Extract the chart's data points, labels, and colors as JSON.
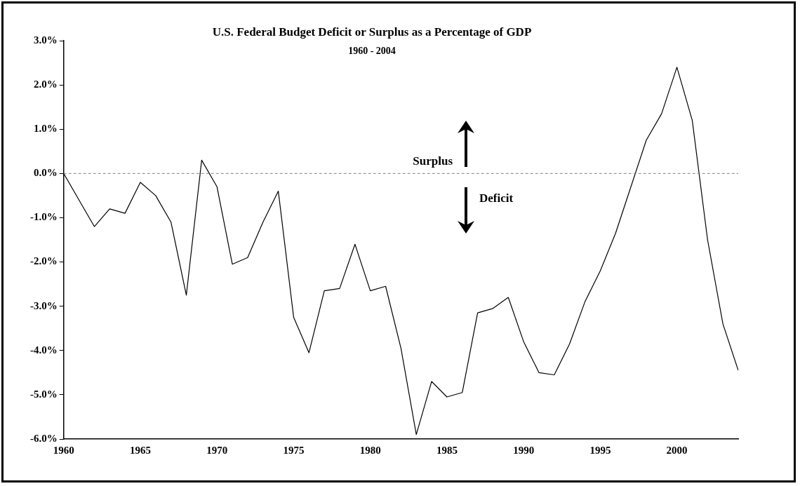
{
  "chart_data": {
    "type": "line",
    "title": "U.S. Federal Budget Deficit or Surplus as a Percentage of GDP",
    "subtitle": "1960 - 2004",
    "x": [
      1960,
      1961,
      1962,
      1963,
      1964,
      1965,
      1966,
      1967,
      1968,
      1969,
      1970,
      1971,
      1972,
      1973,
      1974,
      1975,
      1976,
      1977,
      1978,
      1979,
      1980,
      1981,
      1982,
      1983,
      1984,
      1985,
      1986,
      1987,
      1988,
      1989,
      1990,
      1991,
      1992,
      1993,
      1994,
      1995,
      1996,
      1997,
      1998,
      1999,
      2000,
      2001,
      2002,
      2003,
      2004
    ],
    "series": [
      {
        "color": "#000000",
        "values": [
          0.0,
          -0.6,
          -1.2,
          -0.8,
          -0.9,
          -0.2,
          -0.5,
          -1.1,
          -2.75,
          0.3,
          -0.3,
          -2.05,
          -1.9,
          -1.1,
          -0.4,
          -3.25,
          -4.05,
          -2.65,
          -2.6,
          -1.6,
          -2.65,
          -2.55,
          -3.95,
          -5.9,
          -4.7,
          -5.05,
          -4.95,
          -3.15,
          -3.05,
          -2.8,
          -3.8,
          -4.5,
          -4.55,
          -3.85,
          -2.9,
          -2.2,
          -1.35,
          -0.3,
          0.75,
          1.35,
          2.4,
          1.2,
          -1.5,
          -3.4,
          -4.45
        ]
      }
    ],
    "xlim": [
      1960,
      2004
    ],
    "xticks": [
      1960,
      1965,
      1970,
      1975,
      1980,
      1985,
      1990,
      1995,
      2000
    ],
    "ylim": [
      -6,
      3
    ],
    "yticks": [
      {
        "value": -6,
        "label": "-6.0%"
      },
      {
        "value": -5,
        "label": "-5.0%"
      },
      {
        "value": -4,
        "label": "-4.0%"
      },
      {
        "value": -3,
        "label": "-3.0%"
      },
      {
        "value": -2,
        "label": "-2.0%"
      },
      {
        "value": -1,
        "label": "-1.0%"
      },
      {
        "value": 0,
        "label": "0.0%"
      },
      {
        "value": 1,
        "label": "1.0%"
      },
      {
        "value": 2,
        "label": "2.0%"
      },
      {
        "value": 3,
        "label": "3.0%"
      }
    ],
    "ref_lines": [
      {
        "axis": "y",
        "value": 0,
        "color": "#808080",
        "line_style": "dashed"
      }
    ],
    "annotations": [
      "Surplus",
      "Deficit"
    ],
    "grid": false,
    "legend": false,
    "marker": "none",
    "line_style": "solid"
  }
}
